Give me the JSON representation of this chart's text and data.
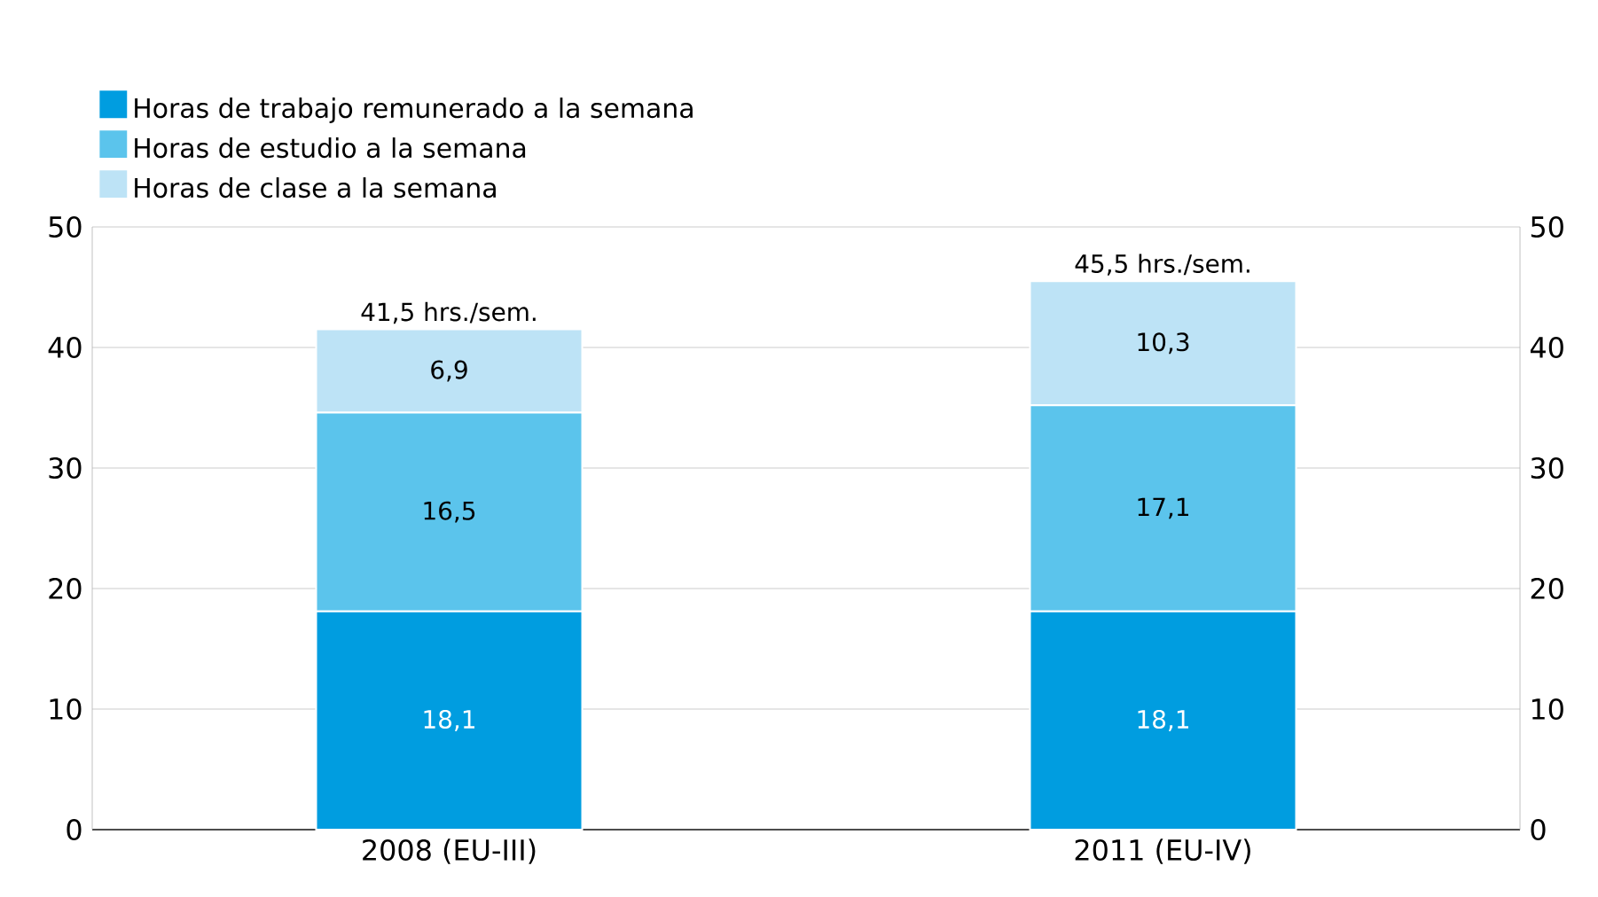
{
  "chart_data": {
    "type": "bar",
    "stacked": true,
    "categories": [
      "2008 (EU-III)",
      "2011 (EU-IV)"
    ],
    "series": [
      {
        "name": "Horas de trabajo remunerado a la semana",
        "color": "#009de0",
        "values": [
          18.1,
          18.1
        ],
        "value_labels": [
          "18,1",
          "18,1"
        ]
      },
      {
        "name": "Horas de estudio a la semana",
        "color": "#5bc4ec",
        "values": [
          16.5,
          17.1
        ],
        "value_labels": [
          "16,5",
          "17,1"
        ]
      },
      {
        "name": "Horas de clase a la semana",
        "color": "#bde3f6",
        "values": [
          6.9,
          10.3
        ],
        "value_labels": [
          "6,9",
          "10,3"
        ]
      }
    ],
    "totals": [
      "41,5 hrs./sem.",
      "45,5 hrs./sem."
    ],
    "ylim": [
      0,
      50
    ],
    "yticks": [
      0,
      10,
      20,
      30,
      40,
      50
    ],
    "y2lim": [
      0,
      50
    ],
    "y2ticks": [
      0,
      10,
      20,
      30,
      40,
      50
    ],
    "grid": "y",
    "legend": "top left"
  }
}
